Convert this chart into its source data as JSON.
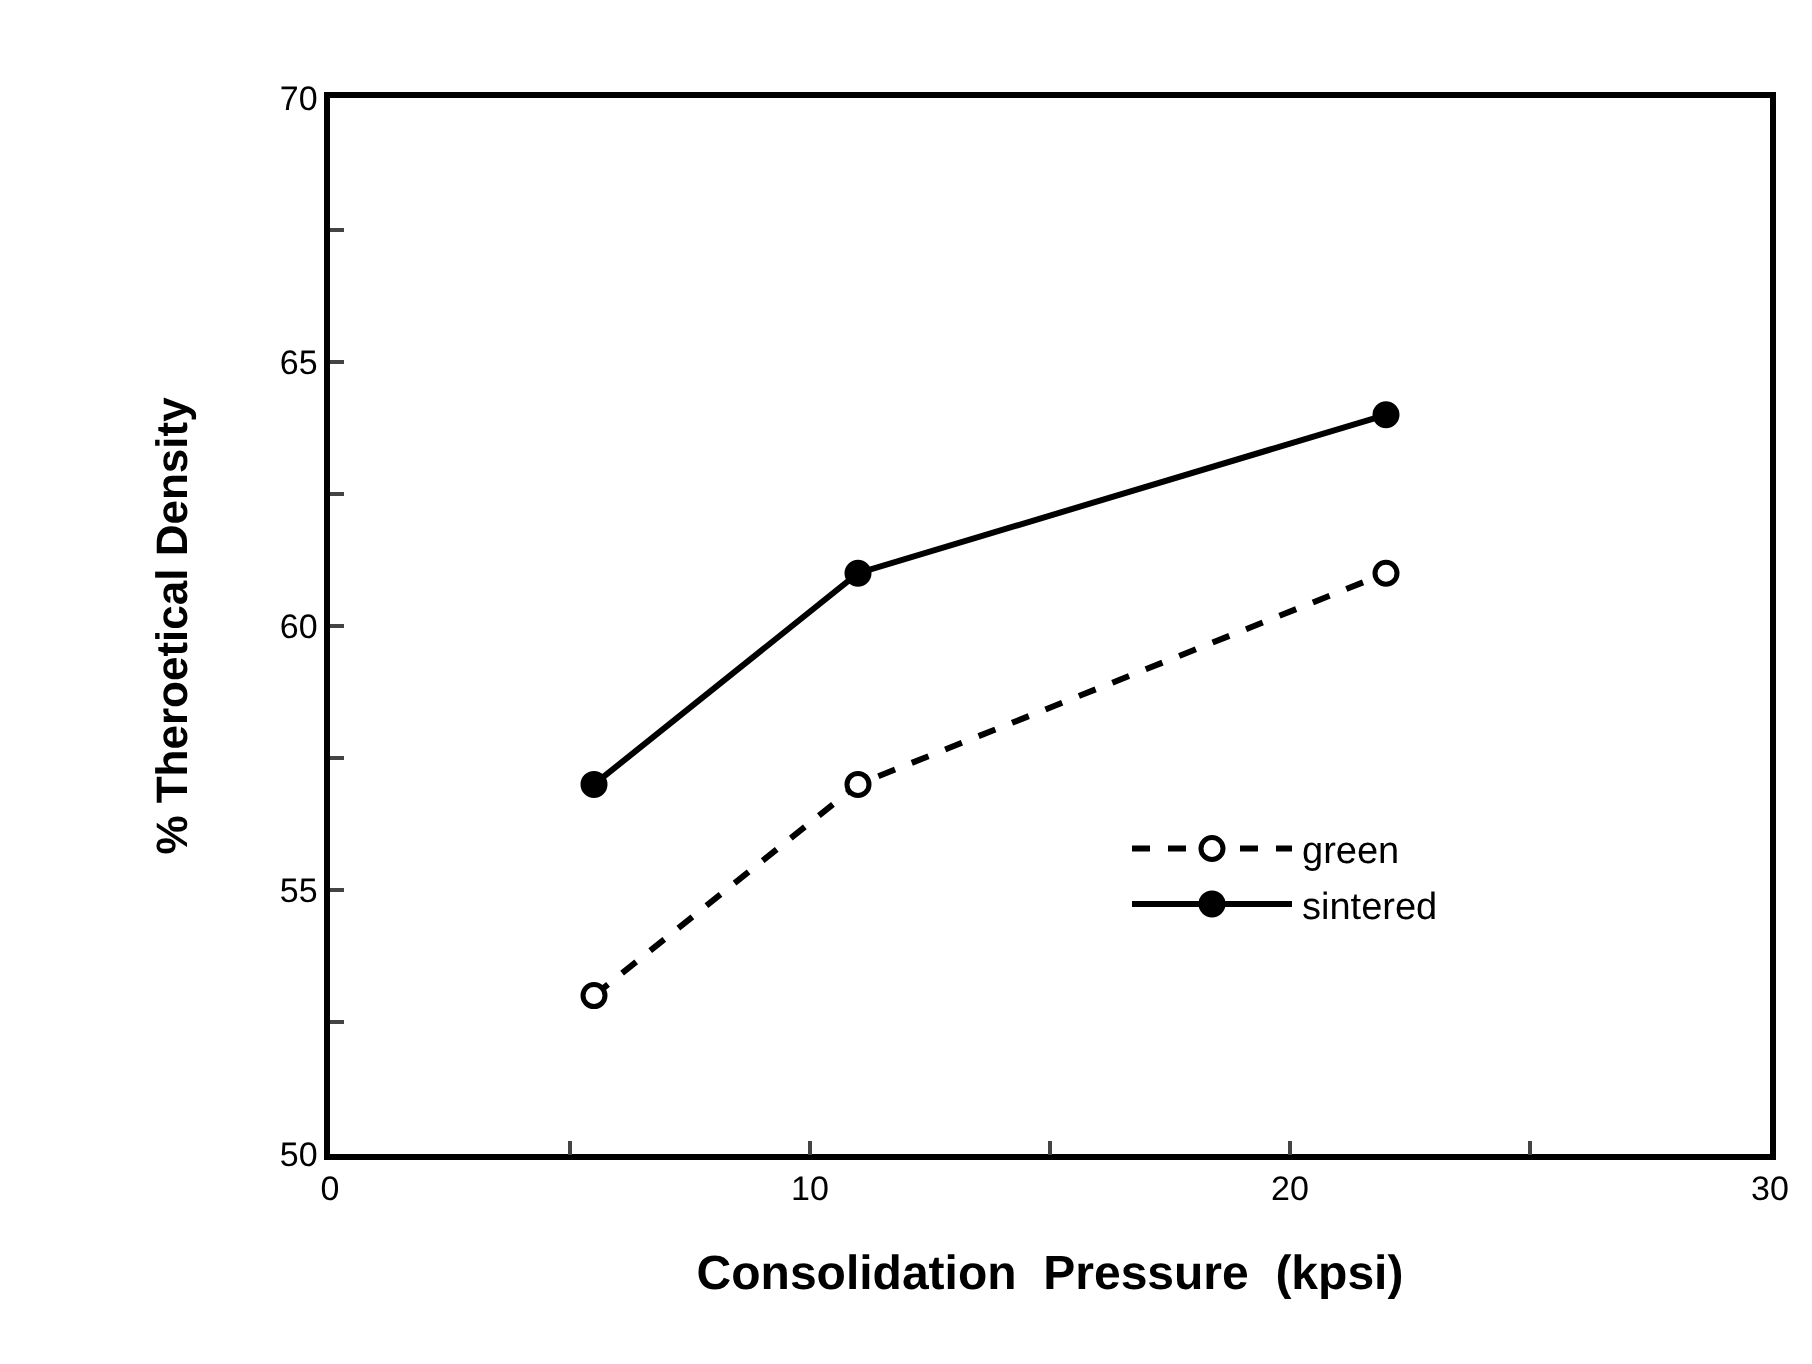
{
  "chart_data": {
    "type": "line",
    "xlabel": "Consolidation  Pressure  (kpsi)",
    "ylabel": "% Theroetical Density",
    "x": [
      5.5,
      11,
      22
    ],
    "series": [
      {
        "name": "green",
        "color": "#000000",
        "values": [
          53,
          57,
          61
        ],
        "line_style": "dashed"
      },
      {
        "name": "sintered",
        "color": "#000000",
        "values": [
          57,
          61,
          64
        ],
        "line_style": "solid"
      }
    ],
    "xlim": [
      0,
      30
    ],
    "xticks": [
      0,
      {
        "value": 5,
        "label": null
      },
      10,
      {
        "value": 15,
        "label": null
      },
      20,
      {
        "value": 25,
        "label": null
      },
      30
    ],
    "ylim": [
      50,
      70
    ],
    "yticks": [
      50,
      {
        "value": 52.5,
        "label": null
      },
      55,
      {
        "value": 57.5,
        "label": null
      },
      60,
      {
        "value": 62.5,
        "label": null
      },
      65,
      {
        "value": 67.5,
        "label": null
      },
      70
    ],
    "legend": "bottom right",
    "marker": "circle"
  }
}
